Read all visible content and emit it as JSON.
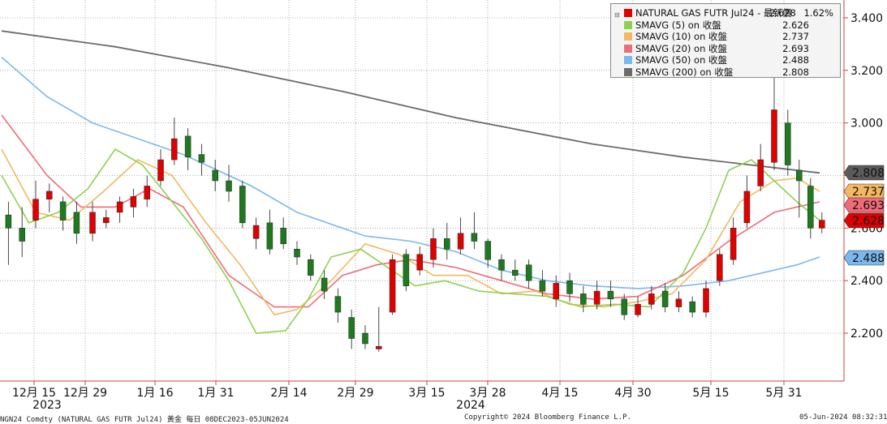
{
  "chart_data": {
    "type": "candlestick",
    "title": "NATURAL GAS FUTR Jul24",
    "y_ticks": [
      "3.400",
      "3.200",
      "3.000",
      "2.800",
      "2.600",
      "2.400",
      "2.200"
    ],
    "ylim": [
      2.05,
      3.45
    ],
    "x_tick_labels": [
      "12月 15",
      "12月 29",
      "1月 16",
      "1月 31",
      "2月 14",
      "2月 29",
      "3月 15",
      "3月 28",
      "4月 15",
      "4月 30",
      "5月 15",
      "5月 31"
    ],
    "year_labels": [
      "2023",
      "2024"
    ],
    "colors": {
      "up": "#e00000",
      "down": "#1f7a1f",
      "sma5": "#8fd14f",
      "sma10": "#f4b860",
      "sma20": "#ee6b7a",
      "sma50": "#7ab8ef",
      "sma200": "#6b6b6b"
    },
    "legend": {
      "header": {
        "name": "NATURAL GAS FUTR Jul24 - 最新價",
        "value": "2.628",
        "change": "1.62%"
      },
      "items": [
        {
          "name": "SMAVG (5)  on 收盤",
          "value": "2.626",
          "color": "#8fd14f"
        },
        {
          "name": "SMAVG (10)  on 收盤",
          "value": "2.737",
          "color": "#f4b860"
        },
        {
          "name": "SMAVG (20)  on 收盤",
          "value": "2.693",
          "color": "#ee6b7a"
        },
        {
          "name": "SMAVG (50)  on 收盤",
          "value": "2.488",
          "color": "#7ab8ef"
        },
        {
          "name": "SMAVG (200)  on 收盤",
          "value": "2.808",
          "color": "#6b6b6b"
        }
      ]
    },
    "value_tags": [
      {
        "value": 2.808,
        "label": "2.808",
        "bg": "#5a5a5a",
        "fg": "#ffffff"
      },
      {
        "value": 2.737,
        "label": "2.737",
        "bg": "#f4b860",
        "fg": "#000000"
      },
      {
        "value": 2.693,
        "label": "2.693",
        "bg": "#ee6b7a",
        "fg": "#000000"
      },
      {
        "value": 2.628,
        "label": "2.628",
        "bg": "#e00000",
        "fg": "#ffffff"
      },
      {
        "value": 2.488,
        "label": "2.488",
        "bg": "#7ab8ef",
        "fg": "#000000"
      }
    ],
    "series": [
      {
        "name": "SMAVG (200)",
        "x": [
          0,
          50,
          100,
          150,
          200,
          260,
          300,
          340,
          360
        ],
        "values": [
          3.35,
          3.29,
          3.21,
          3.12,
          3.02,
          2.92,
          2.87,
          2.83,
          2.81
        ]
      },
      {
        "name": "SMAVG (50)",
        "x": [
          0,
          20,
          40,
          60,
          80,
          110,
          130,
          160,
          180,
          200,
          220,
          240,
          260,
          280,
          300,
          320,
          350,
          360
        ],
        "values": [
          3.25,
          3.1,
          3.0,
          2.94,
          2.88,
          2.76,
          2.66,
          2.57,
          2.55,
          2.51,
          2.44,
          2.4,
          2.38,
          2.37,
          2.38,
          2.4,
          2.46,
          2.49
        ]
      },
      {
        "name": "SMAVG (20)",
        "x": [
          0,
          20,
          35,
          50,
          65,
          80,
          100,
          120,
          135,
          150,
          165,
          180,
          200,
          220,
          240,
          260,
          280,
          300,
          320,
          340,
          360
        ],
        "values": [
          3.03,
          2.8,
          2.68,
          2.68,
          2.75,
          2.68,
          2.42,
          2.3,
          2.3,
          2.42,
          2.46,
          2.48,
          2.45,
          2.4,
          2.35,
          2.33,
          2.34,
          2.42,
          2.55,
          2.66,
          2.7
        ]
      },
      {
        "name": "SMAVG (10)",
        "x": [
          0,
          15,
          30,
          45,
          60,
          75,
          90,
          105,
          120,
          130,
          145,
          160,
          175,
          190,
          205,
          220,
          235,
          250,
          265,
          280,
          295,
          310,
          325,
          340,
          350,
          360
        ],
        "values": [
          2.9,
          2.66,
          2.63,
          2.74,
          2.86,
          2.8,
          2.62,
          2.46,
          2.27,
          2.29,
          2.4,
          2.54,
          2.5,
          2.42,
          2.42,
          2.35,
          2.36,
          2.31,
          2.3,
          2.32,
          2.35,
          2.48,
          2.7,
          2.78,
          2.79,
          2.74
        ]
      },
      {
        "name": "SMAVG (5)",
        "x": [
          0,
          12,
          25,
          38,
          50,
          62,
          75,
          88,
          100,
          112,
          125,
          135,
          145,
          158,
          170,
          182,
          195,
          210,
          225,
          240,
          255,
          270,
          285,
          300,
          310,
          320,
          330,
          340,
          350,
          360
        ],
        "values": [
          2.8,
          2.62,
          2.66,
          2.75,
          2.9,
          2.84,
          2.7,
          2.56,
          2.4,
          2.2,
          2.21,
          2.33,
          2.49,
          2.52,
          2.45,
          2.38,
          2.4,
          2.36,
          2.35,
          2.34,
          2.3,
          2.31,
          2.3,
          2.43,
          2.6,
          2.82,
          2.86,
          2.78,
          2.7,
          2.63
        ]
      }
    ],
    "candles": [
      {
        "x": 3,
        "o": 2.65,
        "c": 2.6,
        "h": 2.7,
        "l": 2.46
      },
      {
        "x": 9,
        "o": 2.6,
        "c": 2.55,
        "h": 2.68,
        "l": 2.49
      },
      {
        "x": 15,
        "o": 2.63,
        "c": 2.71,
        "h": 2.78,
        "l": 2.6
      },
      {
        "x": 21,
        "o": 2.71,
        "c": 2.74,
        "h": 2.77,
        "l": 2.66
      },
      {
        "x": 27,
        "o": 2.7,
        "c": 2.63,
        "h": 2.72,
        "l": 2.59
      },
      {
        "x": 33,
        "o": 2.66,
        "c": 2.58,
        "h": 2.7,
        "l": 2.54
      },
      {
        "x": 40,
        "o": 2.58,
        "c": 2.66,
        "h": 2.7,
        "l": 2.55
      },
      {
        "x": 46,
        "o": 2.62,
        "c": 2.64,
        "h": 2.67,
        "l": 2.6
      },
      {
        "x": 52,
        "o": 2.66,
        "c": 2.7,
        "h": 2.72,
        "l": 2.62
      },
      {
        "x": 58,
        "o": 2.68,
        "c": 2.72,
        "h": 2.75,
        "l": 2.64
      },
      {
        "x": 64,
        "o": 2.71,
        "c": 2.76,
        "h": 2.8,
        "l": 2.68
      },
      {
        "x": 70,
        "o": 2.78,
        "c": 2.86,
        "h": 2.9,
        "l": 2.76
      },
      {
        "x": 76,
        "o": 2.86,
        "c": 2.94,
        "h": 3.02,
        "l": 2.84
      },
      {
        "x": 82,
        "o": 2.95,
        "c": 2.87,
        "h": 2.98,
        "l": 2.82
      },
      {
        "x": 88,
        "o": 2.88,
        "c": 2.85,
        "h": 2.92,
        "l": 2.8
      },
      {
        "x": 94,
        "o": 2.82,
        "c": 2.78,
        "h": 2.86,
        "l": 2.74
      },
      {
        "x": 100,
        "o": 2.78,
        "c": 2.74,
        "h": 2.84,
        "l": 2.7
      },
      {
        "x": 106,
        "o": 2.76,
        "c": 2.62,
        "h": 2.78,
        "l": 2.6
      },
      {
        "x": 112,
        "o": 2.56,
        "c": 2.61,
        "h": 2.64,
        "l": 2.52
      },
      {
        "x": 118,
        "o": 2.62,
        "c": 2.52,
        "h": 2.67,
        "l": 2.5
      },
      {
        "x": 124,
        "o": 2.6,
        "c": 2.54,
        "h": 2.64,
        "l": 2.52
      },
      {
        "x": 130,
        "o": 2.52,
        "c": 2.49,
        "h": 2.55,
        "l": 2.46
      },
      {
        "x": 136,
        "o": 2.48,
        "c": 2.42,
        "h": 2.5,
        "l": 2.4
      },
      {
        "x": 142,
        "o": 2.41,
        "c": 2.36,
        "h": 2.44,
        "l": 2.33
      },
      {
        "x": 148,
        "o": 2.34,
        "c": 2.28,
        "h": 2.37,
        "l": 2.24
      },
      {
        "x": 154,
        "o": 2.26,
        "c": 2.18,
        "h": 2.29,
        "l": 2.14
      },
      {
        "x": 160,
        "o": 2.2,
        "c": 2.16,
        "h": 2.23,
        "l": 2.14
      },
      {
        "x": 166,
        "o": 2.14,
        "c": 2.15,
        "h": 2.3,
        "l": 2.13
      },
      {
        "x": 172,
        "o": 2.28,
        "c": 2.48,
        "h": 2.5,
        "l": 2.27
      },
      {
        "x": 178,
        "o": 2.5,
        "c": 2.38,
        "h": 2.52,
        "l": 2.36
      },
      {
        "x": 184,
        "o": 2.44,
        "c": 2.5,
        "h": 2.53,
        "l": 2.42
      },
      {
        "x": 190,
        "o": 2.48,
        "c": 2.56,
        "h": 2.6,
        "l": 2.45
      },
      {
        "x": 196,
        "o": 2.56,
        "c": 2.52,
        "h": 2.62,
        "l": 2.48
      },
      {
        "x": 202,
        "o": 2.52,
        "c": 2.58,
        "h": 2.64,
        "l": 2.5
      },
      {
        "x": 208,
        "o": 2.58,
        "c": 2.55,
        "h": 2.66,
        "l": 2.52
      },
      {
        "x": 214,
        "o": 2.55,
        "c": 2.48,
        "h": 2.56,
        "l": 2.45
      },
      {
        "x": 220,
        "o": 2.48,
        "c": 2.44,
        "h": 2.5,
        "l": 2.4
      },
      {
        "x": 226,
        "o": 2.44,
        "c": 2.42,
        "h": 2.48,
        "l": 2.4
      },
      {
        "x": 232,
        "o": 2.46,
        "c": 2.4,
        "h": 2.48,
        "l": 2.37
      },
      {
        "x": 238,
        "o": 2.4,
        "c": 2.36,
        "h": 2.44,
        "l": 2.34
      },
      {
        "x": 244,
        "o": 2.33,
        "c": 2.39,
        "h": 2.42,
        "l": 2.3
      },
      {
        "x": 250,
        "o": 2.4,
        "c": 2.35,
        "h": 2.43,
        "l": 2.32
      },
      {
        "x": 256,
        "o": 2.35,
        "c": 2.31,
        "h": 2.38,
        "l": 2.28
      },
      {
        "x": 262,
        "o": 2.31,
        "c": 2.36,
        "h": 2.4,
        "l": 2.29
      },
      {
        "x": 268,
        "o": 2.36,
        "c": 2.33,
        "h": 2.4,
        "l": 2.3
      },
      {
        "x": 274,
        "o": 2.33,
        "c": 2.27,
        "h": 2.35,
        "l": 2.25
      },
      {
        "x": 280,
        "o": 2.27,
        "c": 2.31,
        "h": 2.34,
        "l": 2.26
      },
      {
        "x": 286,
        "o": 2.31,
        "c": 2.35,
        "h": 2.38,
        "l": 2.29
      },
      {
        "x": 292,
        "o": 2.36,
        "c": 2.3,
        "h": 2.39,
        "l": 2.28
      },
      {
        "x": 298,
        "o": 2.3,
        "c": 2.33,
        "h": 2.36,
        "l": 2.28
      },
      {
        "x": 304,
        "o": 2.32,
        "c": 2.28,
        "h": 2.34,
        "l": 2.26
      },
      {
        "x": 310,
        "o": 2.28,
        "c": 2.37,
        "h": 2.4,
        "l": 2.26
      },
      {
        "x": 316,
        "o": 2.4,
        "c": 2.5,
        "h": 2.52,
        "l": 2.38
      },
      {
        "x": 322,
        "o": 2.48,
        "c": 2.6,
        "h": 2.64,
        "l": 2.46
      },
      {
        "x": 328,
        "o": 2.62,
        "c": 2.74,
        "h": 2.8,
        "l": 2.6
      },
      {
        "x": 334,
        "o": 2.76,
        "c": 2.86,
        "h": 2.92,
        "l": 2.74
      },
      {
        "x": 340,
        "o": 2.85,
        "c": 3.05,
        "h": 3.2,
        "l": 2.82
      },
      {
        "x": 346,
        "o": 3.0,
        "c": 2.84,
        "h": 3.05,
        "l": 2.8
      },
      {
        "x": 351,
        "o": 2.82,
        "c": 2.78,
        "h": 2.86,
        "l": 2.64
      },
      {
        "x": 356,
        "o": 2.76,
        "c": 2.6,
        "h": 2.79,
        "l": 2.56
      },
      {
        "x": 361,
        "o": 2.6,
        "c": 2.63,
        "h": 2.66,
        "l": 2.58
      }
    ]
  },
  "footer": {
    "left": "NGN24 Comdty (NATURAL GAS FUTR  Jul24) 黃金  每日 08DEC2023-05JUN2024",
    "center": "Copyright© 2024 Bloomberg Finance L.P.",
    "right": "05-Jun-2024 08:32:31"
  }
}
